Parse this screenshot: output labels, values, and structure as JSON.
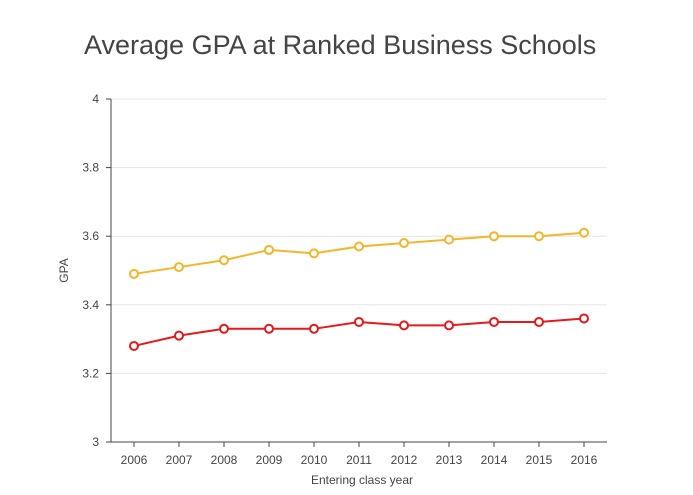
{
  "chart_data": {
    "type": "line",
    "title": "Average GPA at Ranked Business Schools",
    "xlabel": "Entering class year",
    "ylabel": "GPA",
    "categories": [
      "2006",
      "2007",
      "2008",
      "2009",
      "2010",
      "2011",
      "2012",
      "2013",
      "2014",
      "2015",
      "2016"
    ],
    "ylim": [
      3,
      4
    ],
    "yticks": [
      "3",
      "3.2",
      "3.4",
      "3.6",
      "3.8",
      "4"
    ],
    "grid": true,
    "legend": "none",
    "series": [
      {
        "color": "#f3b52a",
        "values": [
          3.49,
          3.51,
          3.53,
          3.56,
          3.55,
          3.57,
          3.58,
          3.59,
          3.6,
          3.6,
          3.61
        ]
      },
      {
        "color": "#e41a1c",
        "values": [
          3.28,
          3.31,
          3.33,
          3.33,
          3.33,
          3.35,
          3.34,
          3.34,
          3.35,
          3.35,
          3.36
        ]
      }
    ]
  }
}
